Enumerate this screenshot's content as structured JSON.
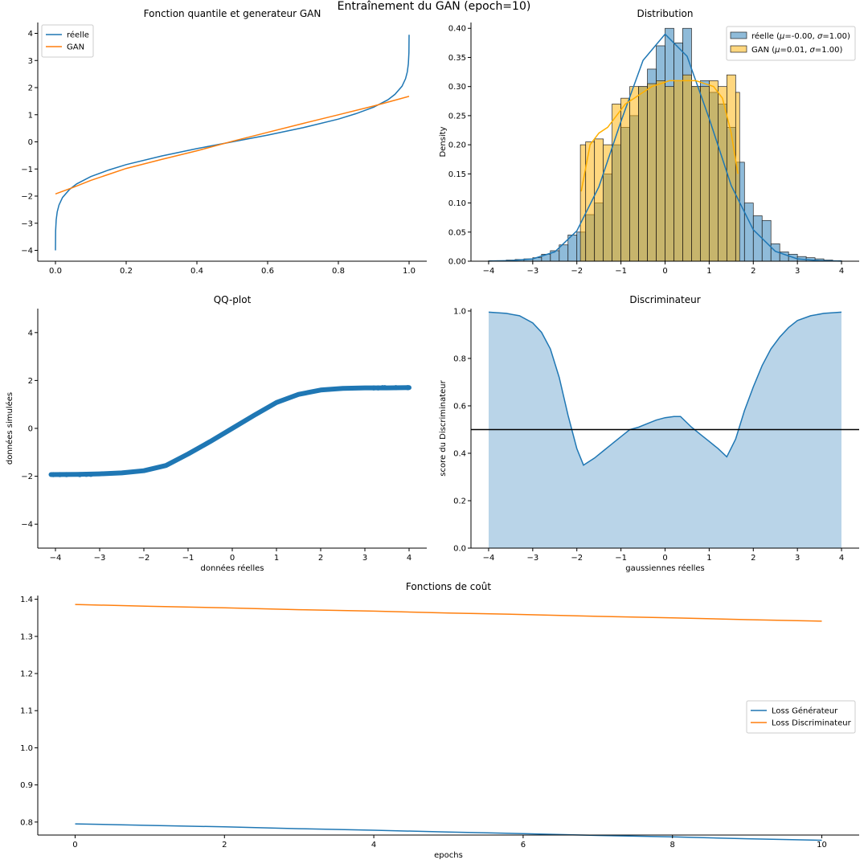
{
  "figure": {
    "suptitle": "Entraînement du GAN (epoch=10)"
  },
  "colors": {
    "real": "#1f77b4",
    "gan": "#ff7f0e",
    "gan_hist": "#ffb000",
    "fill": "#b9d4e8"
  },
  "chart_data": [
    {
      "id": "quantile",
      "type": "line",
      "title": "Fonction quantile et generateur GAN",
      "xlabel": "",
      "ylabel": "",
      "xlim": [
        -0.05,
        1.05
      ],
      "ylim": [
        -4.4,
        4.4
      ],
      "xticks": [
        0.0,
        0.2,
        0.4,
        0.6,
        0.8,
        1.0
      ],
      "xtick_labels": [
        "0.0",
        "0.2",
        "0.4",
        "0.6",
        "0.8",
        "1.0"
      ],
      "yticks": [
        -4,
        -3,
        -2,
        -1,
        0,
        1,
        2,
        3,
        4
      ],
      "ytick_labels": [
        "−4",
        "−3",
        "−2",
        "−1",
        "0",
        "1",
        "2",
        "3",
        "4"
      ],
      "legend_position": "top-left",
      "series": [
        {
          "name": "réelle",
          "color": "#1f77b4",
          "x": [
            3e-05,
            0.0005,
            0.002,
            0.005,
            0.01,
            0.02,
            0.04,
            0.06,
            0.1,
            0.15,
            0.2,
            0.3,
            0.4,
            0.5,
            0.6,
            0.7,
            0.8,
            0.85,
            0.9,
            0.94,
            0.96,
            0.98,
            0.99,
            0.995,
            0.998,
            0.9995,
            0.99997
          ],
          "y": [
            -4.0,
            -3.29,
            -2.88,
            -2.58,
            -2.33,
            -2.05,
            -1.75,
            -1.55,
            -1.28,
            -1.04,
            -0.84,
            -0.52,
            -0.25,
            0.0,
            0.25,
            0.52,
            0.84,
            1.04,
            1.28,
            1.55,
            1.75,
            2.05,
            2.33,
            2.58,
            2.88,
            3.29,
            3.95
          ]
        },
        {
          "name": "GAN",
          "color": "#ff7f0e",
          "x": [
            0.0,
            0.05,
            0.1,
            0.15,
            0.2,
            0.3,
            0.4,
            0.5,
            0.6,
            0.7,
            0.8,
            0.9,
            0.95,
            1.0
          ],
          "y": [
            -1.92,
            -1.68,
            -1.42,
            -1.2,
            -0.98,
            -0.65,
            -0.33,
            0.02,
            0.35,
            0.68,
            1.0,
            1.32,
            1.5,
            1.68
          ]
        }
      ]
    },
    {
      "id": "distribution",
      "type": "bar",
      "title": "Distribution",
      "xlabel": "",
      "ylabel": "Density",
      "xlim": [
        -4.4,
        4.4
      ],
      "ylim": [
        0,
        0.41
      ],
      "xticks": [
        -4,
        -3,
        -2,
        -1,
        0,
        1,
        2,
        3,
        4
      ],
      "xtick_labels": [
        "−4",
        "−3",
        "−2",
        "−1",
        "0",
        "1",
        "2",
        "3",
        "4"
      ],
      "yticks": [
        0.0,
        0.05,
        0.1,
        0.15,
        0.2,
        0.25,
        0.3,
        0.35,
        0.4
      ],
      "ytick_labels": [
        "0.00",
        "0.05",
        "0.10",
        "0.15",
        "0.20",
        "0.25",
        "0.30",
        "0.35",
        "0.40"
      ],
      "legend_position": "top-right",
      "series": [
        {
          "name": "réelle ($\\mu$=-0.00, $\\sigma$=1.00)",
          "legend_prefix": "réelle (",
          "legend_mu_label": "μ",
          "legend_mu_value": "=-0.00, ",
          "legend_sigma_label": "σ",
          "legend_sigma_value": "=1.00)",
          "color": "#1f77b4",
          "bin_edges": [
            -4.0,
            -3.8,
            -3.6,
            -3.4,
            -3.2,
            -3.0,
            -2.8,
            -2.6,
            -2.4,
            -2.2,
            -2.0,
            -1.8,
            -1.6,
            -1.4,
            -1.2,
            -1.0,
            -0.8,
            -0.6,
            -0.4,
            -0.2,
            0.0,
            0.2,
            0.4,
            0.6,
            0.8,
            1.0,
            1.2,
            1.4,
            1.6,
            1.8,
            2.0,
            2.2,
            2.4,
            2.6,
            2.8,
            3.0,
            3.2,
            3.4,
            3.6,
            3.8,
            4.0
          ],
          "values": [
            0.001,
            0.001,
            0.002,
            0.003,
            0.004,
            0.006,
            0.012,
            0.018,
            0.028,
            0.045,
            0.05,
            0.08,
            0.1,
            0.15,
            0.2,
            0.23,
            0.25,
            0.3,
            0.33,
            0.37,
            0.4,
            0.375,
            0.4,
            0.3,
            0.31,
            0.29,
            0.27,
            0.23,
            0.17,
            0.1,
            0.078,
            0.07,
            0.03,
            0.016,
            0.012,
            0.008,
            0.006,
            0.004,
            0.002,
            0.001
          ],
          "kde_x": [
            -4,
            -3.5,
            -3,
            -2.5,
            -2,
            -1.5,
            -1,
            -0.5,
            0,
            0.5,
            1,
            1.5,
            2,
            2.5,
            3,
            3.5,
            4
          ],
          "kde_y": [
            0.0002,
            0.001,
            0.004,
            0.016,
            0.052,
            0.128,
            0.24,
            0.345,
            0.39,
            0.352,
            0.245,
            0.13,
            0.054,
            0.017,
            0.004,
            0.001,
            0.0002
          ]
        },
        {
          "name": "GAN ($\\mu$=0.01, $\\sigma$=1.00)",
          "legend_prefix": "GAN (",
          "legend_mu_label": "μ",
          "legend_mu_value": "=0.01, ",
          "legend_sigma_label": "σ",
          "legend_sigma_value": "=1.00)",
          "color": "#ffb000",
          "bin_edges": [
            -1.92,
            -1.8,
            -1.6,
            -1.4,
            -1.2,
            -1.0,
            -0.8,
            -0.6,
            -0.4,
            -0.2,
            0.0,
            0.2,
            0.4,
            0.6,
            0.8,
            1.0,
            1.2,
            1.4,
            1.6,
            1.69
          ],
          "values": [
            0.2,
            0.205,
            0.21,
            0.2,
            0.27,
            0.28,
            0.3,
            0.3,
            0.305,
            0.31,
            0.3,
            0.31,
            0.32,
            0.3,
            0.3,
            0.31,
            0.3,
            0.32,
            0.29
          ],
          "kde_x": [
            -1.9,
            -1.7,
            -1.5,
            -1.3,
            -1.1,
            -0.9,
            -0.7,
            -0.5,
            -0.3,
            -0.1,
            0.1,
            0.3,
            0.5,
            0.7,
            0.9,
            1.1,
            1.3,
            1.5,
            1.65
          ],
          "kde_y": [
            0.12,
            0.2,
            0.22,
            0.23,
            0.25,
            0.27,
            0.28,
            0.29,
            0.3,
            0.305,
            0.31,
            0.31,
            0.31,
            0.31,
            0.305,
            0.3,
            0.28,
            0.22,
            0.15
          ]
        }
      ]
    },
    {
      "id": "qqplot",
      "type": "scatter",
      "title": "QQ-plot",
      "xlabel": "données réelles",
      "ylabel": "données simulées",
      "xlim": [
        -4.4,
        4.4
      ],
      "ylim": [
        -5,
        5
      ],
      "xticks": [
        -4,
        -3,
        -2,
        -1,
        0,
        1,
        2,
        3,
        4
      ],
      "xtick_labels": [
        "−4",
        "−3",
        "−2",
        "−1",
        "0",
        "1",
        "2",
        "3",
        "4"
      ],
      "yticks": [
        -4,
        -2,
        0,
        2,
        4
      ],
      "ytick_labels": [
        "−4",
        "−2",
        "0",
        "2",
        "4"
      ],
      "series": [
        {
          "name": "",
          "color": "#1f77b4",
          "curve_x": [
            -4.1,
            -3.5,
            -3.0,
            -2.5,
            -2.0,
            -1.5,
            -1.0,
            -0.5,
            0.0,
            0.5,
            1.0,
            1.5,
            2.0,
            2.5,
            3.0,
            3.5,
            4.0
          ],
          "curve_y": [
            -1.93,
            -1.92,
            -1.9,
            -1.86,
            -1.77,
            -1.55,
            -1.07,
            -0.55,
            0.0,
            0.55,
            1.08,
            1.42,
            1.6,
            1.67,
            1.69,
            1.69,
            1.7
          ],
          "outliers_x": [
            -4.05,
            -3.9,
            -3.75,
            -3.45,
            -3.3,
            -3.2,
            3.2,
            3.3,
            3.4,
            3.45,
            3.7,
            3.97
          ],
          "outliers_y": [
            -1.93,
            -1.93,
            -1.93,
            -1.93,
            -1.92,
            -1.92,
            1.69,
            1.69,
            1.7,
            1.7,
            1.7,
            1.7
          ]
        }
      ]
    },
    {
      "id": "discriminator",
      "type": "area",
      "title": "Discriminateur",
      "xlabel": "gaussiennes réelles",
      "ylabel": "score du Discriminateur",
      "xlim": [
        -4.4,
        4.4
      ],
      "ylim": [
        0,
        1.01
      ],
      "xticks": [
        -4,
        -3,
        -2,
        -1,
        0,
        1,
        2,
        3,
        4
      ],
      "xtick_labels": [
        "−4",
        "−3",
        "−2",
        "−1",
        "0",
        "1",
        "2",
        "3",
        "4"
      ],
      "yticks": [
        0.0,
        0.2,
        0.4,
        0.6,
        0.8,
        1.0
      ],
      "ytick_labels": [
        "0.0",
        "0.2",
        "0.4",
        "0.6",
        "0.8",
        "1.0"
      ],
      "hline": 0.5,
      "series": [
        {
          "name": "",
          "color": "#1f77b4",
          "x": [
            -4.0,
            -3.6,
            -3.3,
            -3.0,
            -2.8,
            -2.6,
            -2.4,
            -2.2,
            -2.0,
            -1.85,
            -1.6,
            -1.4,
            -1.2,
            -1.0,
            -0.8,
            -0.6,
            -0.4,
            -0.2,
            0.0,
            0.2,
            0.35,
            0.6,
            0.8,
            1.0,
            1.2,
            1.4,
            1.6,
            1.8,
            2.0,
            2.2,
            2.4,
            2.6,
            2.8,
            3.0,
            3.3,
            3.6,
            4.0
          ],
          "y": [
            0.995,
            0.99,
            0.98,
            0.95,
            0.91,
            0.84,
            0.72,
            0.56,
            0.42,
            0.35,
            0.38,
            0.41,
            0.44,
            0.47,
            0.5,
            0.51,
            0.525,
            0.54,
            0.55,
            0.555,
            0.555,
            0.51,
            0.48,
            0.45,
            0.42,
            0.385,
            0.46,
            0.58,
            0.68,
            0.77,
            0.84,
            0.89,
            0.93,
            0.96,
            0.98,
            0.99,
            0.995
          ]
        }
      ]
    },
    {
      "id": "losses",
      "type": "line",
      "title": "Fonctions de coût",
      "xlabel": "epochs",
      "ylabel": "",
      "xlim": [
        -0.5,
        10.5
      ],
      "ylim": [
        0.765,
        1.41
      ],
      "xticks": [
        0,
        2,
        4,
        6,
        8,
        10
      ],
      "xtick_labels": [
        "0",
        "2",
        "4",
        "6",
        "8",
        "10"
      ],
      "yticks": [
        0.8,
        0.9,
        1.0,
        1.1,
        1.2,
        1.3,
        1.4
      ],
      "ytick_labels": [
        "0.8",
        "0.9",
        "1.0",
        "1.1",
        "1.2",
        "1.3",
        "1.4"
      ],
      "legend_position": "center-right",
      "series": [
        {
          "name": "Loss Générateur",
          "color": "#1f77b4",
          "x": [
            0,
            1,
            2,
            3,
            4,
            5,
            6,
            7,
            8,
            9,
            10
          ],
          "y": [
            0.795,
            0.791,
            0.787,
            0.782,
            0.778,
            0.773,
            0.769,
            0.764,
            0.76,
            0.755,
            0.751
          ]
        },
        {
          "name": "Loss Discriminateur",
          "color": "#ff7f0e",
          "x": [
            0,
            1,
            2,
            3,
            4,
            5,
            6,
            7,
            8,
            9,
            10
          ],
          "y": [
            1.386,
            1.381,
            1.377,
            1.372,
            1.368,
            1.363,
            1.359,
            1.354,
            1.35,
            1.345,
            1.341
          ]
        }
      ]
    }
  ]
}
